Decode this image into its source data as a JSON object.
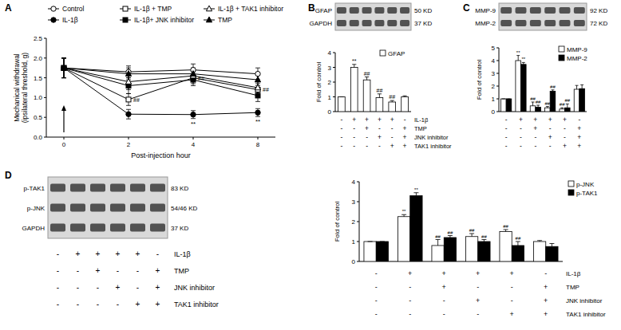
{
  "chart_data": [
    {
      "type": "line",
      "panel": "A",
      "x_label": "Post-injection hour",
      "y_label": "Mechanical withdrawal (ipsilateral threshold, g)",
      "categories": [
        "0",
        "2",
        "4",
        "8"
      ],
      "ylim": [
        0,
        2.5
      ],
      "yticks": [
        {
          "value": 0,
          "label": "0.0"
        },
        {
          "value": 0.5,
          "label": "0.5"
        },
        {
          "value": 1,
          "label": "1.0"
        },
        {
          "value": 1.5,
          "label": "1.5"
        },
        {
          "value": 2,
          "label": "2.0"
        },
        {
          "value": 2.5,
          "label": "2.5"
        }
      ],
      "legend": "top",
      "series": [
        {
          "name": "Control",
          "color": "#000000",
          "marker": "circle-open",
          "values": [
            1.75,
            1.65,
            1.7,
            1.6
          ],
          "errors": [
            0.25,
            0.15,
            0.15,
            0.15
          ]
        },
        {
          "name": "IL-1β",
          "color": "#000000",
          "marker": "circle",
          "values": [
            1.75,
            0.58,
            0.57,
            0.62
          ],
          "errors": [
            0.25,
            0.12,
            0.1,
            0.1
          ]
        },
        {
          "name": "IL-1β + TMP",
          "color": "#000000",
          "marker": "square-open",
          "values": [
            1.75,
            0.95,
            1.5,
            1.2
          ],
          "errors": [
            0.25,
            0.15,
            0.15,
            0.15
          ]
        },
        {
          "name": "IL-1β+ JNK inhibitor",
          "color": "#000000",
          "marker": "square",
          "values": [
            1.75,
            1.3,
            1.45,
            1.05
          ],
          "errors": [
            0.25,
            0.2,
            0.15,
            0.15
          ]
        },
        {
          "name": "IL-1β + TAK1 inhibitor",
          "color": "#000000",
          "marker": "triangle-open",
          "values": [
            1.75,
            1.4,
            1.55,
            1.25
          ],
          "errors": [
            0.25,
            0.2,
            0.15,
            0.15
          ]
        },
        {
          "name": "TMP",
          "color": "#000000",
          "marker": "triangle",
          "values": [
            1.75,
            1.6,
            1.6,
            1.45
          ],
          "errors": [
            0.25,
            0.15,
            0.15,
            0.15
          ]
        }
      ],
      "annotations": [
        {
          "text": "**",
          "series": 1,
          "index": 2
        },
        {
          "text": "**",
          "series": 1,
          "index": 3
        },
        {
          "text": "##",
          "series": 2,
          "index": 1
        },
        {
          "text": "##",
          "series": 2,
          "index": 2
        },
        {
          "text": "##",
          "series": 2,
          "index": 3
        }
      ]
    },
    {
      "type": "bar",
      "panel": "B",
      "y_label": "Fold of control",
      "categories": [
        null,
        null,
        null,
        null,
        null,
        null
      ],
      "ylim": [
        0,
        4
      ],
      "yticks": [
        0,
        1,
        2,
        3,
        4
      ],
      "legend": "upper right",
      "series": [
        {
          "name": "GFAP",
          "color": "#ffffff",
          "values": [
            1,
            3.0,
            2.15,
            0.95,
            0.65,
            1.0
          ],
          "errors": [
            0,
            0.2,
            0.2,
            0.25,
            0.1,
            0.07
          ]
        }
      ],
      "annotations": [
        {
          "text": "**",
          "series": 0,
          "index": 1
        },
        {
          "text": "##",
          "series": 0,
          "index": 2
        },
        {
          "text": "##",
          "series": 0,
          "index": 3
        },
        {
          "text": "##",
          "series": 0,
          "index": 4
        }
      ],
      "blot": {
        "bands": [
          "GFAP",
          "GAPDH"
        ],
        "sizes": [
          "50 KD",
          "37 KD"
        ]
      },
      "treatment_table": {
        "rows": [
          {
            "label": "IL-1β",
            "values": [
              "-",
              "+",
              "+",
              "+",
              "+",
              "-"
            ]
          },
          {
            "label": "TMP",
            "values": [
              "-",
              "-",
              "+",
              "-",
              "-",
              "+"
            ]
          },
          {
            "label": "JNK inhibitor",
            "values": [
              "-",
              "-",
              "-",
              "+",
              "-",
              "+"
            ]
          },
          {
            "label": "TAK1 inhibitor",
            "values": [
              "-",
              "-",
              "-",
              "-",
              "+",
              "+"
            ]
          }
        ]
      }
    },
    {
      "type": "bar",
      "panel": "C",
      "y_label": "Fold of control",
      "categories": [
        null,
        null,
        null,
        null,
        null,
        null
      ],
      "ylim": [
        0,
        5
      ],
      "yticks": [
        0,
        1,
        2,
        3,
        4,
        5
      ],
      "legend": "upper right",
      "series": [
        {
          "name": "MMP-9",
          "color": "#ffffff",
          "values": [
            1,
            4.0,
            0.45,
            0.3,
            0.2,
            1.75
          ],
          "errors": [
            0,
            0.4,
            0.3,
            0.1,
            0.1,
            0.3
          ]
        },
        {
          "name": "MMP-2",
          "color": "#000000",
          "values": [
            1,
            3.7,
            0.35,
            1.6,
            0.3,
            1.8
          ],
          "errors": [
            0,
            0.15,
            0.15,
            0.1,
            0.3,
            0.3
          ]
        }
      ],
      "annotations": [
        {
          "text": "**",
          "series": 0,
          "index": 1
        },
        {
          "text": "**",
          "series": 1,
          "index": 1
        },
        {
          "text": "##",
          "series": 0,
          "index": 2
        },
        {
          "text": "##",
          "series": 1,
          "index": 2
        },
        {
          "text": "##",
          "series": 0,
          "index": 3
        },
        {
          "text": "##",
          "series": 1,
          "index": 3
        },
        {
          "text": "##",
          "series": 0,
          "index": 4
        },
        {
          "text": "##",
          "series": 1,
          "index": 4
        }
      ],
      "blot": {
        "bands": [
          "MMP-9",
          "MMP-2"
        ],
        "sizes": [
          "92 KD",
          "72 KD"
        ]
      },
      "treatment_table": {
        "rows": [
          {
            "values": [
              "-",
              "+",
              "+",
              "+",
              "+",
              "-"
            ]
          },
          {
            "values": [
              "-",
              "-",
              "+",
              "-",
              "-",
              "+"
            ]
          },
          {
            "values": [
              "-",
              "-",
              "-",
              "+",
              "-",
              "+"
            ]
          },
          {
            "values": [
              "-",
              "-",
              "-",
              "-",
              "+",
              "+"
            ]
          }
        ]
      }
    },
    {
      "type": "bar",
      "panel": "D",
      "y_label": "Fold of control",
      "categories": [
        null,
        null,
        null,
        null,
        null,
        null
      ],
      "ylim": [
        0,
        4
      ],
      "yticks": [
        0,
        1,
        2,
        3,
        4
      ],
      "legend": "upper right",
      "series": [
        {
          "name": "p-JNK",
          "color": "#ffffff",
          "values": [
            1,
            2.25,
            0.8,
            1.25,
            1.5,
            1.0
          ],
          "errors": [
            0,
            0.1,
            0.3,
            0.15,
            0.1,
            0.05
          ]
        },
        {
          "name": "p-TAK1",
          "color": "#000000",
          "values": [
            1,
            3.3,
            1.2,
            1.0,
            0.8,
            0.75
          ],
          "errors": [
            0,
            0.15,
            0.1,
            0.1,
            0.2,
            0.15
          ]
        }
      ],
      "annotations": [
        {
          "text": "**",
          "series": 0,
          "index": 1
        },
        {
          "text": "**",
          "series": 1,
          "index": 1
        },
        {
          "text": "##",
          "series": 0,
          "index": 2
        },
        {
          "text": "##",
          "series": 1,
          "index": 2
        },
        {
          "text": "##",
          "series": 0,
          "index": 3
        },
        {
          "text": "##",
          "series": 1,
          "index": 3
        },
        {
          "text": "##",
          "series": 0,
          "index": 4
        },
        {
          "text": "##",
          "series": 1,
          "index": 4
        }
      ],
      "blot": {
        "bands": [
          "p-TAK1",
          "p-JNK",
          "GAPDH"
        ],
        "sizes": [
          "83 KD",
          "54/46 KD",
          "37 KD"
        ],
        "treatment_table": {
          "rows": [
            {
              "label": "IL-1β",
              "values": [
                "-",
                "+",
                "+",
                "+",
                "+",
                "-"
              ]
            },
            {
              "label": "TMP",
              "values": [
                "-",
                "-",
                "+",
                "-",
                "-",
                "+"
              ]
            },
            {
              "label": "JNK inhibitor",
              "values": [
                "-",
                "-",
                "-",
                "+",
                "-",
                "+"
              ]
            },
            {
              "label": "TAK1 inhibitor",
              "values": [
                "-",
                "-",
                "-",
                "-",
                "+",
                "+"
              ]
            }
          ]
        }
      },
      "treatment_table": {
        "rows": [
          {
            "label": "IL-1β",
            "values": [
              "-",
              "+",
              "+",
              "+",
              "+",
              "-"
            ]
          },
          {
            "label": "TMP",
            "values": [
              "-",
              "-",
              "+",
              "-",
              "-",
              "+"
            ]
          },
          {
            "label": "JNK inhibitor",
            "values": [
              "-",
              "-",
              "-",
              "+",
              "-",
              "+"
            ]
          },
          {
            "label": "TAK1 inhibitor",
            "values": [
              "-",
              "-",
              "-",
              "-",
              "+",
              "+"
            ]
          }
        ]
      }
    }
  ]
}
